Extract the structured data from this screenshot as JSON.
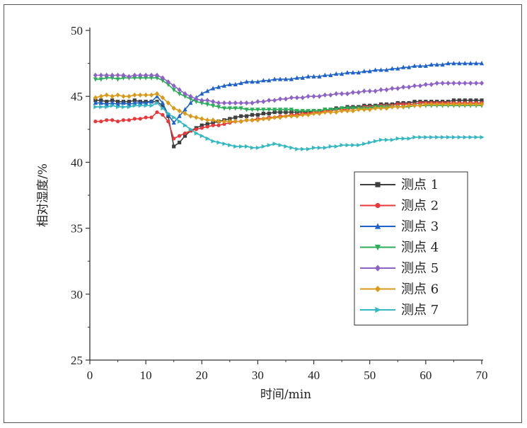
{
  "chart_data": {
    "type": "line",
    "title": "",
    "xlabel": "时间/min",
    "ylabel": "相对湿度/%",
    "xlim": [
      0,
      70
    ],
    "ylim": [
      25,
      50
    ],
    "xticks": [
      0,
      10,
      20,
      30,
      40,
      50,
      60,
      70
    ],
    "yticks": [
      25,
      30,
      35,
      40,
      45,
      50
    ],
    "grid": false,
    "legend_position": "center-right",
    "x": [
      1,
      2,
      3,
      4,
      5,
      6,
      7,
      8,
      9,
      10,
      11,
      12,
      13,
      14,
      15,
      16,
      17,
      18,
      19,
      20,
      21,
      22,
      23,
      24,
      25,
      26,
      27,
      28,
      29,
      30,
      31,
      32,
      33,
      34,
      35,
      36,
      37,
      38,
      39,
      40,
      41,
      42,
      43,
      44,
      45,
      46,
      47,
      48,
      49,
      50,
      51,
      52,
      53,
      54,
      55,
      56,
      57,
      58,
      59,
      60,
      61,
      62,
      63,
      64,
      65,
      66,
      67,
      68,
      69,
      70
    ],
    "series": [
      {
        "name": "测点 1",
        "color": "#3f3f3f",
        "marker": "square",
        "values": [
          44.7,
          44.7,
          44.6,
          44.7,
          44.6,
          44.6,
          44.6,
          44.7,
          44.6,
          44.6,
          44.6,
          44.6,
          44.3,
          43.5,
          41.2,
          41.5,
          42.0,
          42.4,
          42.6,
          42.8,
          42.9,
          43.0,
          43.1,
          43.2,
          43.3,
          43.4,
          43.5,
          43.5,
          43.6,
          43.6,
          43.7,
          43.7,
          43.8,
          43.8,
          43.8,
          43.8,
          43.8,
          43.8,
          43.8,
          43.9,
          43.9,
          44.0,
          44.0,
          44.1,
          44.1,
          44.2,
          44.2,
          44.2,
          44.3,
          44.3,
          44.3,
          44.4,
          44.4,
          44.4,
          44.5,
          44.5,
          44.5,
          44.6,
          44.6,
          44.6,
          44.6,
          44.6,
          44.6,
          44.6,
          44.7,
          44.7,
          44.7,
          44.7,
          44.7,
          44.7
        ]
      },
      {
        "name": "测点 2",
        "color": "#e8383b",
        "marker": "circle",
        "values": [
          43.1,
          43.1,
          43.2,
          43.2,
          43.1,
          43.2,
          43.2,
          43.3,
          43.3,
          43.4,
          43.4,
          43.8,
          43.6,
          43.1,
          41.8,
          42.0,
          42.2,
          42.4,
          42.5,
          42.6,
          42.7,
          42.8,
          42.8,
          42.9,
          43.0,
          43.1,
          43.1,
          43.2,
          43.2,
          43.3,
          43.3,
          43.4,
          43.4,
          43.5,
          43.5,
          43.6,
          43.6,
          43.7,
          43.7,
          43.8,
          43.8,
          43.9,
          43.9,
          44.0,
          44.0,
          44.0,
          44.1,
          44.1,
          44.2,
          44.2,
          44.2,
          44.3,
          44.3,
          44.3,
          44.4,
          44.4,
          44.4,
          44.4,
          44.5,
          44.5,
          44.5,
          44.5,
          44.5,
          44.5,
          44.5,
          44.5,
          44.5,
          44.5,
          44.5,
          44.5
        ]
      },
      {
        "name": "测点 3",
        "color": "#1f63c8",
        "marker": "triangle-up",
        "values": [
          44.5,
          44.5,
          44.4,
          44.5,
          44.4,
          44.5,
          44.4,
          44.5,
          44.5,
          44.5,
          44.6,
          45.0,
          44.5,
          43.6,
          43.0,
          43.5,
          44.0,
          44.5,
          44.9,
          45.2,
          45.4,
          45.6,
          45.7,
          45.8,
          45.9,
          45.9,
          46.0,
          46.1,
          46.1,
          46.1,
          46.2,
          46.2,
          46.3,
          46.3,
          46.3,
          46.3,
          46.4,
          46.4,
          46.5,
          46.5,
          46.5,
          46.6,
          46.6,
          46.7,
          46.7,
          46.8,
          46.8,
          46.8,
          46.9,
          46.9,
          47.0,
          47.0,
          47.0,
          47.1,
          47.1,
          47.2,
          47.2,
          47.3,
          47.3,
          47.3,
          47.4,
          47.4,
          47.4,
          47.5,
          47.5,
          47.5,
          47.5,
          47.5,
          47.5,
          47.5
        ]
      },
      {
        "name": "测点 4",
        "color": "#2aae58",
        "marker": "triangle-down",
        "values": [
          46.3,
          46.3,
          46.4,
          46.4,
          46.3,
          46.4,
          46.4,
          46.4,
          46.4,
          46.4,
          46.4,
          46.4,
          46.2,
          45.9,
          45.5,
          45.2,
          45.0,
          44.8,
          44.6,
          44.5,
          44.4,
          44.3,
          44.2,
          44.1,
          44.1,
          44.1,
          44.1,
          44.0,
          44.0,
          44.0,
          44.0,
          44.0,
          44.0,
          44.0,
          44.0,
          44.0,
          43.9,
          43.9,
          43.9,
          43.9,
          43.9,
          44.0,
          44.0,
          44.0,
          44.1,
          44.1,
          44.1,
          44.1,
          44.1,
          44.1,
          44.2,
          44.2,
          44.2,
          44.2,
          44.2,
          44.2,
          44.2,
          44.3,
          44.3,
          44.3,
          44.3,
          44.3,
          44.3,
          44.3,
          44.3,
          44.3,
          44.3,
          44.3,
          44.3,
          44.3
        ]
      },
      {
        "name": "测点 5",
        "color": "#8e63c7",
        "marker": "diamond",
        "values": [
          46.6,
          46.6,
          46.6,
          46.6,
          46.6,
          46.6,
          46.5,
          46.6,
          46.6,
          46.6,
          46.6,
          46.6,
          46.4,
          46.1,
          45.8,
          45.5,
          45.2,
          45.0,
          44.8,
          44.7,
          44.7,
          44.6,
          44.5,
          44.5,
          44.5,
          44.5,
          44.5,
          44.5,
          44.5,
          44.6,
          44.6,
          44.7,
          44.7,
          44.8,
          44.8,
          44.9,
          44.9,
          44.9,
          45.0,
          45.0,
          45.0,
          45.1,
          45.1,
          45.2,
          45.2,
          45.2,
          45.3,
          45.3,
          45.4,
          45.4,
          45.4,
          45.5,
          45.5,
          45.6,
          45.6,
          45.7,
          45.7,
          45.8,
          45.8,
          45.9,
          45.9,
          46.0,
          46.0,
          46.0,
          46.0,
          46.0,
          46.0,
          46.0,
          46.0,
          46.0
        ]
      },
      {
        "name": "测点 6",
        "color": "#d99a1a",
        "marker": "diamond",
        "values": [
          44.9,
          45.0,
          45.1,
          45.0,
          45.1,
          45.0,
          45.0,
          45.1,
          45.1,
          45.1,
          45.1,
          45.2,
          44.9,
          44.5,
          44.1,
          43.9,
          43.7,
          43.5,
          43.4,
          43.3,
          43.2,
          43.2,
          43.1,
          43.1,
          43.1,
          43.1,
          43.1,
          43.2,
          43.2,
          43.2,
          43.3,
          43.3,
          43.4,
          43.4,
          43.5,
          43.5,
          43.5,
          43.6,
          43.6,
          43.7,
          43.7,
          43.8,
          43.8,
          43.8,
          43.9,
          43.9,
          43.9,
          44.0,
          44.0,
          44.0,
          44.1,
          44.1,
          44.1,
          44.2,
          44.2,
          44.2,
          44.3,
          44.3,
          44.3,
          44.4,
          44.4,
          44.4,
          44.4,
          44.4,
          44.4,
          44.4,
          44.4,
          44.4,
          44.4,
          44.4
        ]
      },
      {
        "name": "测点 7",
        "color": "#35b8c2",
        "marker": "triangle-right",
        "values": [
          44.2,
          44.2,
          44.2,
          44.3,
          44.2,
          44.2,
          44.2,
          44.3,
          44.3,
          44.3,
          44.3,
          44.5,
          44.1,
          43.7,
          43.4,
          43.1,
          42.8,
          42.5,
          42.2,
          42.0,
          41.8,
          41.6,
          41.5,
          41.4,
          41.3,
          41.2,
          41.2,
          41.2,
          41.1,
          41.1,
          41.2,
          41.3,
          41.4,
          41.3,
          41.2,
          41.1,
          41.0,
          41.0,
          41.0,
          41.1,
          41.1,
          41.1,
          41.2,
          41.2,
          41.3,
          41.3,
          41.3,
          41.3,
          41.4,
          41.5,
          41.6,
          41.7,
          41.7,
          41.7,
          41.8,
          41.8,
          41.8,
          41.9,
          41.9,
          41.9,
          41.9,
          41.9,
          41.9,
          41.9,
          41.9,
          41.9,
          41.9,
          41.9,
          41.9,
          41.9
        ]
      }
    ]
  }
}
